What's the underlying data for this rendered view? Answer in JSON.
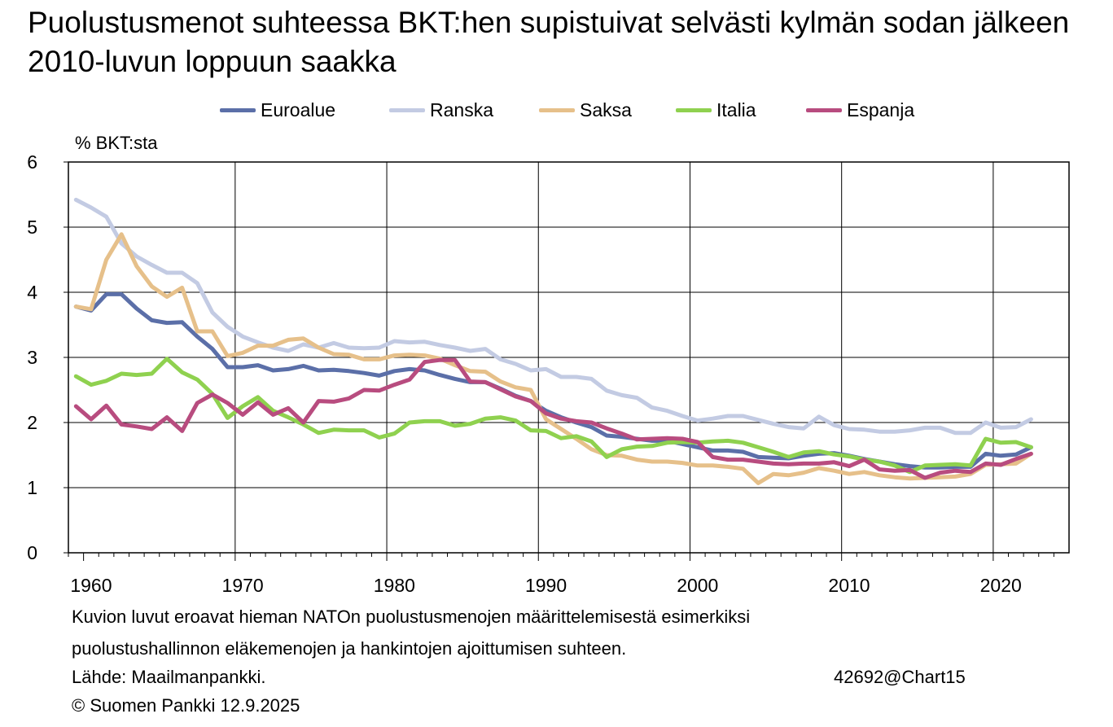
{
  "title": "Puolustusmenot suhteessa BKT:hen supistuivat selvästi kylmän sodan jälkeen 2010-luvun loppuun saakka",
  "unit_label": "% BKT:sta",
  "notes": {
    "line1": "Kuvion luvut eroavat hieman NATOn puolustusmenojen määrittelemisestä esimerkiksi",
    "line2": "puolustushallinnon eläkemenojen ja hankintojen ajoittumisen suhteen.",
    "source": "Lähde: Maailmanpankki.",
    "code": "42692@Chart15",
    "copyright": "© Suomen Pankki 12.9.2025"
  },
  "chart_data": {
    "type": "line",
    "title": "Puolustusmenot suhteessa BKT:hen supistuivat selvästi kylmän sodan jälkeen 2010-luvun loppuun saakka",
    "xlabel": "",
    "ylabel": "% BKT:sta",
    "xlim": [
      1959,
      2022
    ],
    "ylim": [
      0,
      6
    ],
    "x_ticks": [
      "1960",
      "1970",
      "1980",
      "1990",
      "2000",
      "2010",
      "2020"
    ],
    "y_ticks": [
      "0",
      "1",
      "2",
      "3",
      "4",
      "5",
      "6"
    ],
    "grid": true,
    "legend_position": "top",
    "x": [
      1959,
      1960,
      1961,
      1962,
      1963,
      1964,
      1965,
      1966,
      1967,
      1968,
      1969,
      1970,
      1971,
      1972,
      1973,
      1974,
      1975,
      1976,
      1977,
      1978,
      1979,
      1980,
      1981,
      1982,
      1983,
      1984,
      1985,
      1986,
      1987,
      1988,
      1989,
      1990,
      1991,
      1992,
      1993,
      1994,
      1995,
      1996,
      1997,
      1998,
      1999,
      2000,
      2001,
      2002,
      2003,
      2004,
      2005,
      2006,
      2007,
      2008,
      2009,
      2010,
      2011,
      2012,
      2013,
      2014,
      2015,
      2016,
      2017,
      2018,
      2019,
      2020,
      2021,
      2022
    ],
    "series": [
      {
        "name": "Euroalue",
        "color": "#5b6fa8",
        "values": [
          3.78,
          3.72,
          3.97,
          3.97,
          3.75,
          3.57,
          3.53,
          3.54,
          3.32,
          3.13,
          2.85,
          2.85,
          2.88,
          2.8,
          2.82,
          2.87,
          2.8,
          2.81,
          2.79,
          2.76,
          2.72,
          2.79,
          2.82,
          2.8,
          2.73,
          2.67,
          2.62,
          2.62,
          2.52,
          2.41,
          2.33,
          2.18,
          2.08,
          2.0,
          1.93,
          1.8,
          1.78,
          1.75,
          1.72,
          1.72,
          1.67,
          1.62,
          1.57,
          1.57,
          1.55,
          1.47,
          1.46,
          1.45,
          1.49,
          1.52,
          1.53,
          1.49,
          1.44,
          1.4,
          1.36,
          1.33,
          1.31,
          1.31,
          1.32,
          1.32,
          1.52,
          1.49,
          1.51,
          1.62
        ]
      },
      {
        "name": "Ranska",
        "color": "#c3cbe3",
        "values": [
          5.42,
          5.3,
          5.16,
          4.75,
          4.55,
          4.42,
          4.3,
          4.3,
          4.14,
          3.69,
          3.47,
          3.32,
          3.23,
          3.15,
          3.1,
          3.2,
          3.15,
          3.22,
          3.15,
          3.14,
          3.15,
          3.25,
          3.23,
          3.24,
          3.19,
          3.15,
          3.1,
          3.13,
          2.97,
          2.9,
          2.8,
          2.82,
          2.7,
          2.7,
          2.67,
          2.49,
          2.42,
          2.38,
          2.23,
          2.18,
          2.1,
          2.03,
          2.06,
          2.1,
          2.1,
          2.04,
          1.98,
          1.93,
          1.91,
          2.09,
          1.96,
          1.9,
          1.89,
          1.86,
          1.86,
          1.88,
          1.92,
          1.92,
          1.84,
          1.84,
          2.0,
          1.92,
          1.93,
          2.05
        ]
      },
      {
        "name": "Saksa",
        "color": "#e6c08a",
        "values": [
          3.78,
          3.74,
          4.5,
          4.89,
          4.4,
          4.09,
          3.93,
          4.07,
          3.4,
          3.4,
          3.02,
          3.07,
          3.18,
          3.18,
          3.27,
          3.29,
          3.15,
          3.05,
          3.04,
          2.97,
          2.97,
          3.03,
          3.04,
          3.03,
          2.98,
          2.88,
          2.79,
          2.78,
          2.63,
          2.54,
          2.5,
          2.05,
          1.9,
          1.75,
          1.59,
          1.5,
          1.49,
          1.43,
          1.4,
          1.4,
          1.38,
          1.34,
          1.34,
          1.32,
          1.29,
          1.07,
          1.21,
          1.19,
          1.23,
          1.3,
          1.26,
          1.21,
          1.24,
          1.19,
          1.16,
          1.14,
          1.15,
          1.16,
          1.17,
          1.21,
          1.35,
          1.36,
          1.37,
          1.52
        ]
      },
      {
        "name": "Italia",
        "color": "#8fd14f",
        "values": [
          2.71,
          2.58,
          2.64,
          2.75,
          2.73,
          2.75,
          2.98,
          2.77,
          2.66,
          2.44,
          2.07,
          2.25,
          2.39,
          2.18,
          2.08,
          1.97,
          1.84,
          1.89,
          1.88,
          1.88,
          1.77,
          1.83,
          2.0,
          2.02,
          2.02,
          1.95,
          1.98,
          2.06,
          2.08,
          2.03,
          1.88,
          1.87,
          1.76,
          1.79,
          1.71,
          1.47,
          1.59,
          1.63,
          1.64,
          1.69,
          1.7,
          1.69,
          1.71,
          1.72,
          1.69,
          1.62,
          1.55,
          1.47,
          1.54,
          1.56,
          1.51,
          1.48,
          1.43,
          1.4,
          1.34,
          1.24,
          1.34,
          1.35,
          1.36,
          1.34,
          1.75,
          1.69,
          1.7,
          1.62
        ]
      },
      {
        "name": "Espanja",
        "color": "#b84c7f",
        "values": [
          2.25,
          2.05,
          2.26,
          1.97,
          1.94,
          1.9,
          2.08,
          1.87,
          2.3,
          2.43,
          2.3,
          2.12,
          2.31,
          2.12,
          2.22,
          2.0,
          2.33,
          2.32,
          2.37,
          2.5,
          2.49,
          2.58,
          2.66,
          2.93,
          2.96,
          2.96,
          2.63,
          2.62,
          2.51,
          2.4,
          2.33,
          2.14,
          2.06,
          2.02,
          2.0,
          1.91,
          1.83,
          1.74,
          1.75,
          1.76,
          1.75,
          1.7,
          1.47,
          1.43,
          1.43,
          1.4,
          1.37,
          1.36,
          1.37,
          1.37,
          1.39,
          1.33,
          1.43,
          1.28,
          1.26,
          1.27,
          1.15,
          1.23,
          1.26,
          1.24,
          1.37,
          1.35,
          1.44,
          1.52
        ]
      }
    ]
  }
}
